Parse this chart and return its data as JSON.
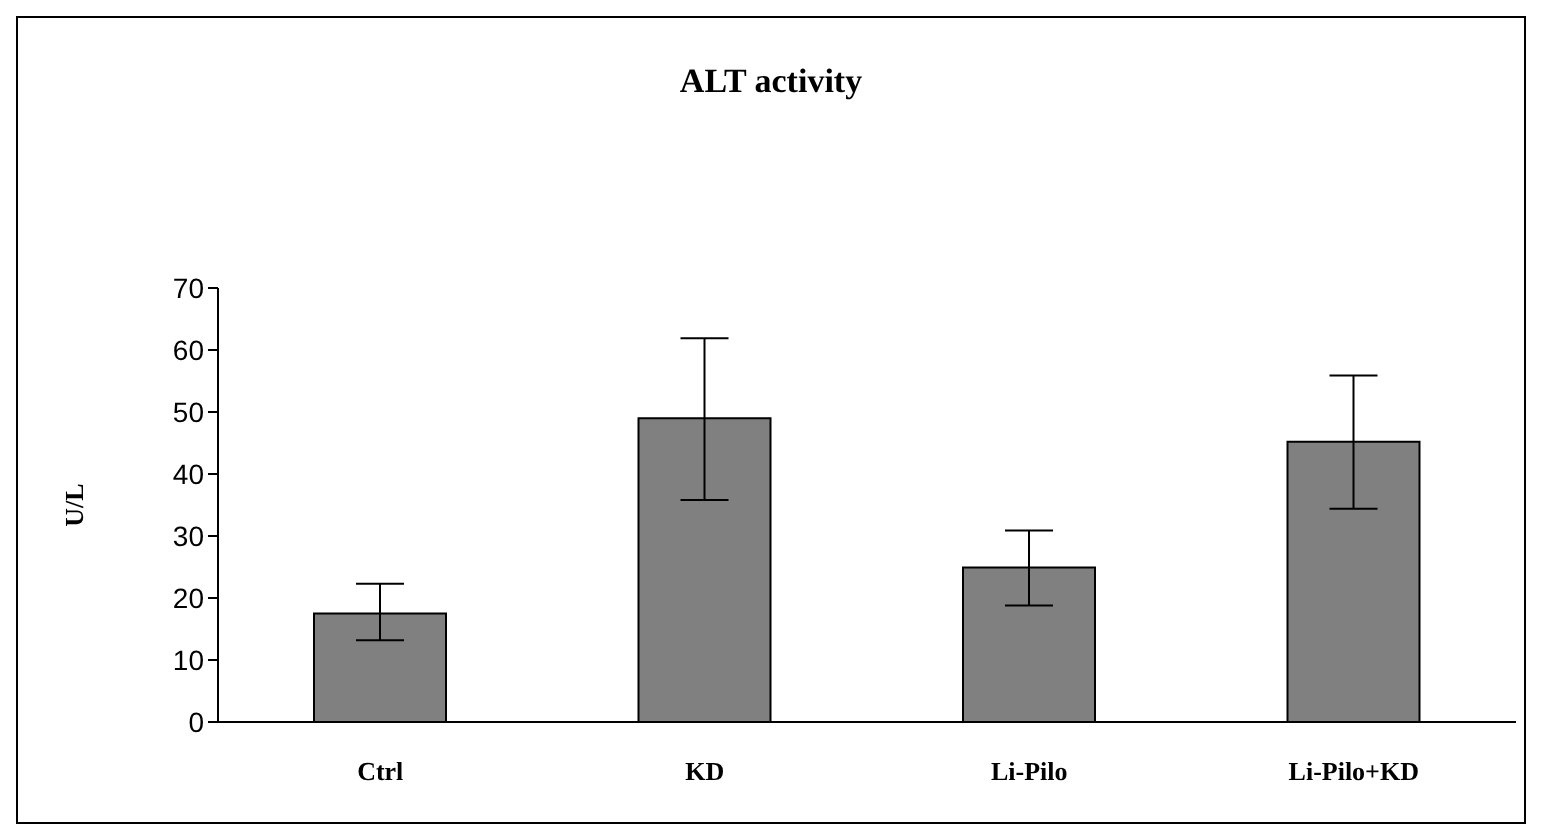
{
  "chart_data": {
    "type": "bar",
    "title": "ALT activity",
    "ylabel": "U/L",
    "categories": [
      "Ctrl",
      "KD",
      "Li-Pilo",
      "Li-Pilo+KD"
    ],
    "values": [
      17.5,
      49,
      24.9,
      45.2
    ],
    "errors": [
      [
        13.2,
        22.3
      ],
      [
        35.8,
        61.9
      ],
      [
        18.8,
        30.9
      ],
      [
        34.4,
        55.9
      ]
    ],
    "color": "#808080",
    "ylim": [
      0,
      70
    ],
    "yticks": [
      0,
      10,
      20,
      30,
      40,
      50,
      60,
      70
    ],
    "grid": false,
    "legend": false
  }
}
